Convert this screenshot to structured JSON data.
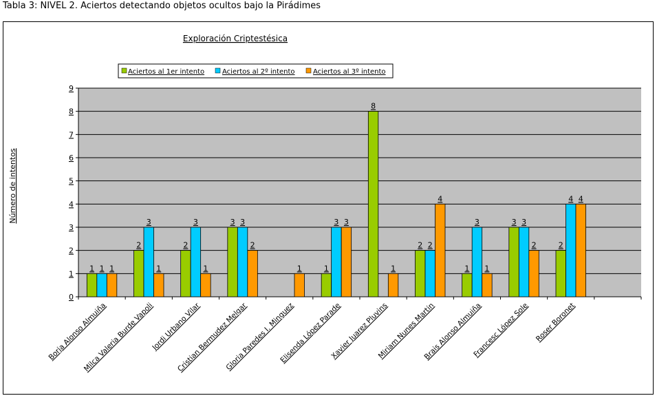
{
  "caption": "Tabla 3: NIVEL 2. Aciertos detectando objetos ocultos bajo la Pirádimes",
  "colors": {
    "series1": "#99cc00",
    "series2": "#00ccff",
    "series3": "#ff9900",
    "plot_background": "#c0c0c0"
  },
  "chart_data": {
    "type": "bar",
    "title": "Exploración Criptestésica",
    "xlabel": "",
    "ylabel": "Número de intentos",
    "ylim": [
      0,
      9
    ],
    "yticks": [
      "0",
      "1",
      "2",
      "3",
      "4",
      "5",
      "6",
      "7",
      "8",
      "9"
    ],
    "grid": true,
    "legend_position": "top",
    "categories": [
      "Borja Alonso Almuiña",
      "Milca Valeria Burde Vapoli",
      "Jordi Urbano Vilar",
      "Cristian Bermudez Melgar",
      "Gloria Paredes I. Minguez",
      "Elisenda López Parade",
      "Xavier Juarez Pluvins",
      "Miriam Nunes Martin",
      "Brais Alonso Almuiña",
      "Francesc López Sole",
      "Roser Boronet"
    ],
    "series": [
      {
        "name": "Aciertos al 1er intento",
        "values": [
          1,
          2,
          2,
          3,
          null,
          1,
          8,
          2,
          1,
          3,
          2
        ]
      },
      {
        "name": "Aciertos al 2º intento",
        "values": [
          1,
          3,
          3,
          3,
          null,
          3,
          null,
          2,
          3,
          3,
          4
        ]
      },
      {
        "name": "Aciertos al 3º intento",
        "values": [
          1,
          1,
          1,
          2,
          1,
          3,
          1,
          4,
          1,
          2,
          4
        ]
      }
    ]
  }
}
